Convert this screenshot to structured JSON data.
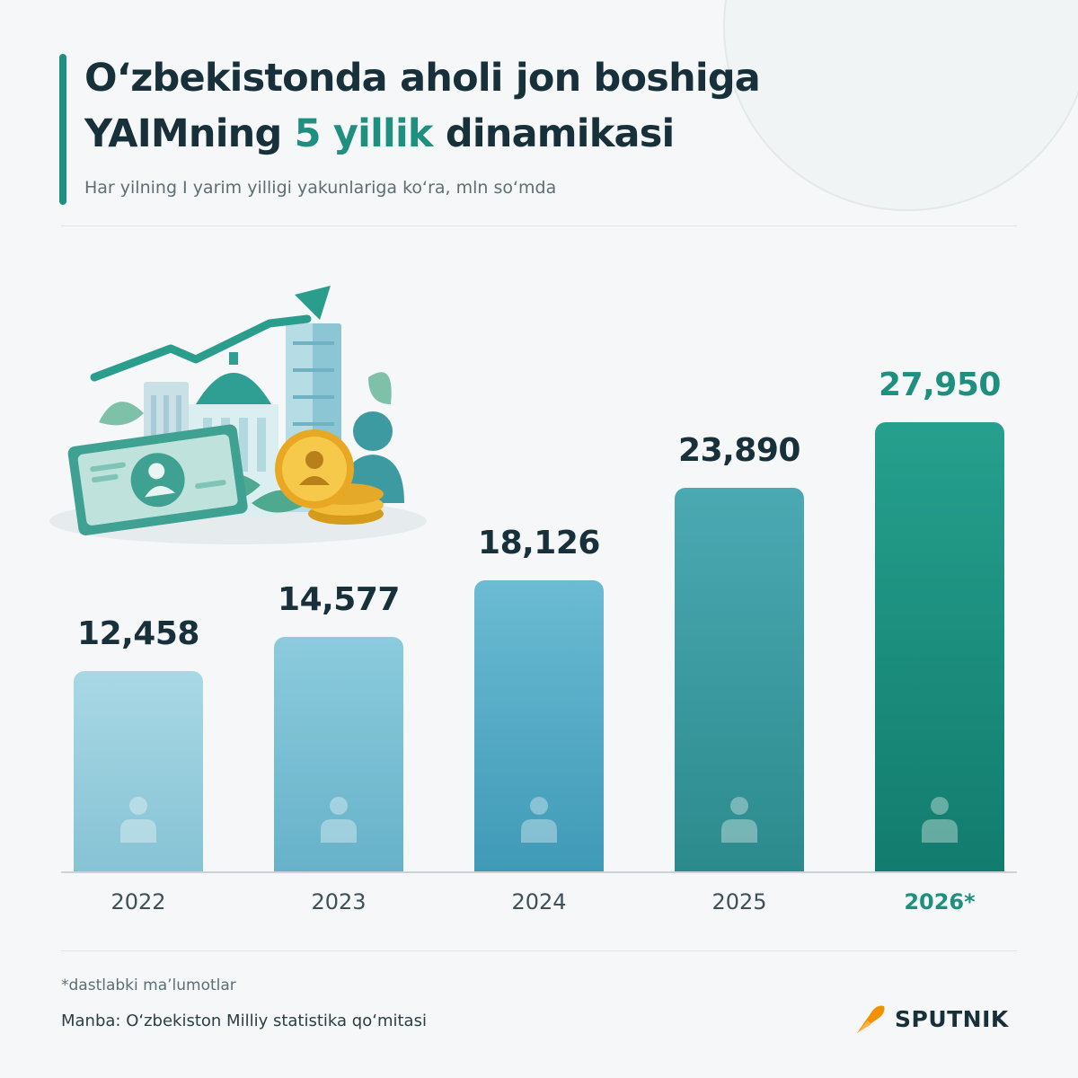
{
  "header": {
    "title_line1": "O‘zbekistonda aholi jon boshiga",
    "title_line2_pre": "YAIMning ",
    "title_line2_accent": "5 yillik",
    "title_line2_post": " dinamikasi",
    "subtitle": "Har yilning I yarim yilligi yakunlariga ko‘ra, mln so‘mda"
  },
  "chart_data": {
    "type": "bar",
    "categories": [
      "2022",
      "2023",
      "2024",
      "2025",
      "2026*"
    ],
    "values": [
      12458,
      14577,
      18126,
      23890,
      27950
    ],
    "value_labels": [
      "12,458",
      "14,577",
      "18,126",
      "23,890",
      "27,950"
    ],
    "bar_colors": [
      [
        "#a9d8e5",
        "#86c3d4"
      ],
      [
        "#8ccbdd",
        "#67b2c9"
      ],
      [
        "#6bbbd3",
        "#3f9ab7"
      ],
      [
        "#4ba9b3",
        "#2b8b8c"
      ],
      [
        "#26a08e",
        "#127c6e"
      ]
    ],
    "highlight_category": "2026*",
    "grid": false,
    "legend": "none"
  },
  "footer": {
    "footnote": "*dastlabki ma’lumotlar",
    "source": "Manba: O‘zbekiston Milliy statistika qo‘mitasi",
    "logo_text": "SPUTNIK"
  },
  "colors": {
    "accent": "#1f8f7f",
    "text_dark": "#17303a",
    "logo_orange": "#f39200"
  },
  "icons": {
    "bar_icon": "person-icon",
    "illustration": "economy-growth-illustration",
    "logo": "sputnik-logo-icon"
  }
}
